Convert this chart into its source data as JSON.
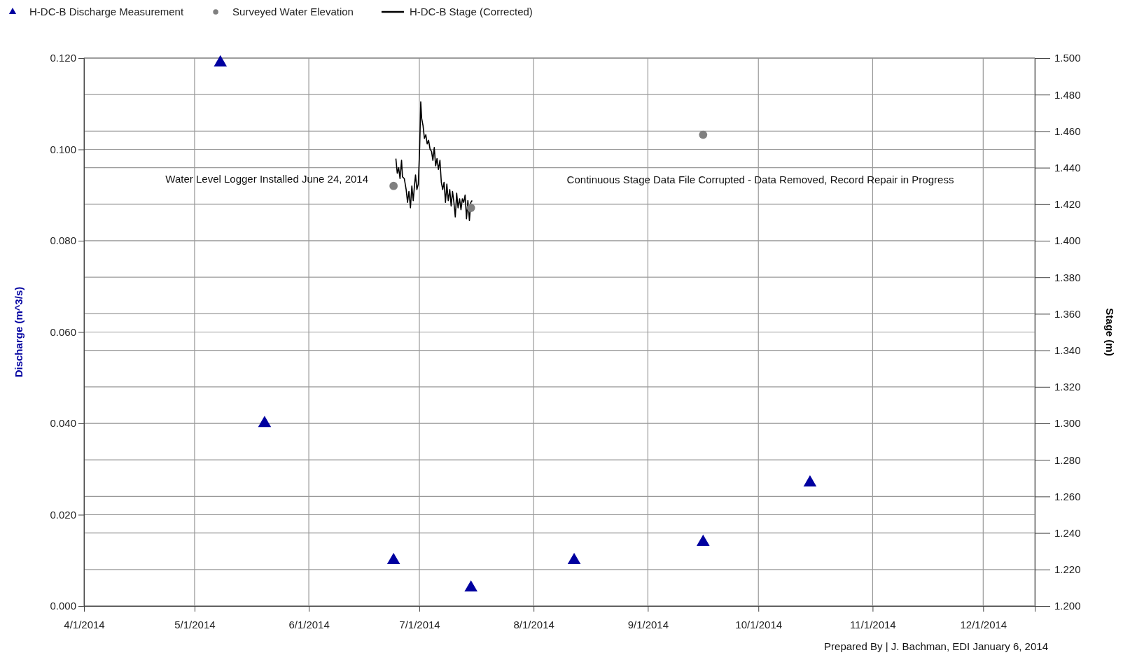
{
  "chart_data": {
    "type": "scatter",
    "xlim": [
      "2014-04-01",
      "2014-12-15"
    ],
    "xticks": [
      {
        "value": "2014-04-01",
        "label": "4/1/2014"
      },
      {
        "value": "2014-05-01",
        "label": "5/1/2014"
      },
      {
        "value": "2014-06-01",
        "label": "6/1/2014"
      },
      {
        "value": "2014-07-01",
        "label": "7/1/2014"
      },
      {
        "value": "2014-08-01",
        "label": "8/1/2014"
      },
      {
        "value": "2014-09-01",
        "label": "9/1/2014"
      },
      {
        "value": "2014-10-01",
        "label": "10/1/2014"
      },
      {
        "value": "2014-11-01",
        "label": "11/1/2014"
      },
      {
        "value": "2014-12-01",
        "label": "12/1/2014"
      }
    ],
    "ylim": [
      0,
      0.12
    ],
    "yticks": [
      {
        "value": 0,
        "label": "0.000"
      },
      {
        "value": 0.02,
        "label": "0.020"
      },
      {
        "value": 0.04,
        "label": "0.040"
      },
      {
        "value": 0.06,
        "label": "0.060"
      },
      {
        "value": 0.08,
        "label": "0.080"
      },
      {
        "value": 0.1,
        "label": "0.100"
      },
      {
        "value": 0.12,
        "label": "0.120"
      }
    ],
    "y2lim": [
      1.2,
      1.5
    ],
    "y2ticks": [
      {
        "value": 1.2,
        "label": "1.200"
      },
      {
        "value": 1.22,
        "label": "1.220"
      },
      {
        "value": 1.24,
        "label": "1.240"
      },
      {
        "value": 1.26,
        "label": "1.260"
      },
      {
        "value": 1.28,
        "label": "1.280"
      },
      {
        "value": 1.3,
        "label": "1.300"
      },
      {
        "value": 1.32,
        "label": "1.320"
      },
      {
        "value": 1.34,
        "label": "1.340"
      },
      {
        "value": 1.36,
        "label": "1.360"
      },
      {
        "value": 1.38,
        "label": "1.380"
      },
      {
        "value": 1.4,
        "label": "1.400"
      },
      {
        "value": 1.42,
        "label": "1.420"
      },
      {
        "value": 1.44,
        "label": "1.440"
      },
      {
        "value": 1.46,
        "label": "1.460"
      },
      {
        "value": 1.48,
        "label": "1.480"
      },
      {
        "value": 1.5,
        "label": "1.500"
      }
    ],
    "ylabel": "Discharge (m^3/s)",
    "y2label": "Stage (m)",
    "grid": true,
    "legend": "top left",
    "series": [
      {
        "name": "H-DC-B Discharge Measurement",
        "marker": "triangle",
        "color": "#0000a0",
        "x": [
          "2014-05-08",
          "2014-05-20",
          "2014-06-24",
          "2014-07-15",
          "2014-08-12",
          "2014-09-16",
          "2014-10-15"
        ],
        "values": [
          0.119,
          0.04,
          0.01,
          0.004,
          0.01,
          0.014,
          0.027
        ]
      },
      {
        "name": "Surveyed Water Elevation",
        "marker": "circle",
        "axis": "y2",
        "color": "#808080",
        "x": [
          "2014-06-24",
          "2014-07-15",
          "2014-09-16"
        ],
        "values": [
          1.43,
          1.418,
          1.458
        ]
      },
      {
        "name": "H-DC-B Stage (Corrected)",
        "type": "line",
        "axis": "y2",
        "color": "#000000",
        "x": [
          "2014-06-24T15:00",
          "2014-06-25T00:00",
          "2014-06-25T09:00",
          "2014-06-25T18:00",
          "2014-06-26T04:00",
          "2014-06-26T10:00",
          "2014-06-26T22:00",
          "2014-06-27T10:00",
          "2014-06-27T19:00",
          "2014-06-28T04:00",
          "2014-06-28T14:00",
          "2014-06-28T23:00",
          "2014-06-29T08:00",
          "2014-06-29T17:00",
          "2014-06-29T23:00",
          "2014-06-30T08:00",
          "2014-06-30T17:00",
          "2014-07-01T02:00",
          "2014-07-01T09:00",
          "2014-07-01T15:00",
          "2014-07-02T00:00",
          "2014-07-02T09:00",
          "2014-07-02T18:00",
          "2014-07-03T03:00",
          "2014-07-03T12:00",
          "2014-07-03T22:00",
          "2014-07-04T07:00",
          "2014-07-04T16:00",
          "2014-07-05T01:00",
          "2014-07-05T10:00",
          "2014-07-05T19:00",
          "2014-07-06T04:00",
          "2014-07-06T14:00",
          "2014-07-06T23:00",
          "2014-07-07T08:00",
          "2014-07-07T17:00",
          "2014-07-08T02:00",
          "2014-07-08T11:00",
          "2014-07-08T20:00",
          "2014-07-09T06:00",
          "2014-07-09T15:00",
          "2014-07-10T00:00",
          "2014-07-10T09:00",
          "2014-07-10T18:00",
          "2014-07-11T03:00",
          "2014-07-11T12:00",
          "2014-07-11T22:00",
          "2014-07-12T07:00",
          "2014-07-12T16:00",
          "2014-07-13T01:00",
          "2014-07-13T10:00",
          "2014-07-13T19:00",
          "2014-07-14T04:00",
          "2014-07-14T14:00",
          "2014-07-14T23:00",
          "2014-07-15T08:00"
        ],
        "values": [
          1.445,
          1.437,
          1.44,
          1.434,
          1.444,
          1.435,
          1.434,
          1.428,
          1.421,
          1.427,
          1.418,
          1.43,
          1.422,
          1.431,
          1.436,
          1.428,
          1.431,
          1.451,
          1.476,
          1.467,
          1.463,
          1.456,
          1.458,
          1.453,
          1.455,
          1.45,
          1.449,
          1.444,
          1.451,
          1.441,
          1.445,
          1.439,
          1.444,
          1.432,
          1.428,
          1.432,
          1.421,
          1.431,
          1.422,
          1.428,
          1.419,
          1.427,
          1.421,
          1.413,
          1.426,
          1.418,
          1.423,
          1.417,
          1.423,
          1.421,
          1.425,
          1.412,
          1.422,
          1.411,
          1.421,
          1.422
        ]
      }
    ],
    "annotations": [
      "Water Level Logger Installed June 24, 2014",
      "Continuous Stage Data File Corrupted - Data Removed, Record Repair in Progress",
      "Prepared By | J. Bachman, EDI January 6, 2014"
    ]
  }
}
